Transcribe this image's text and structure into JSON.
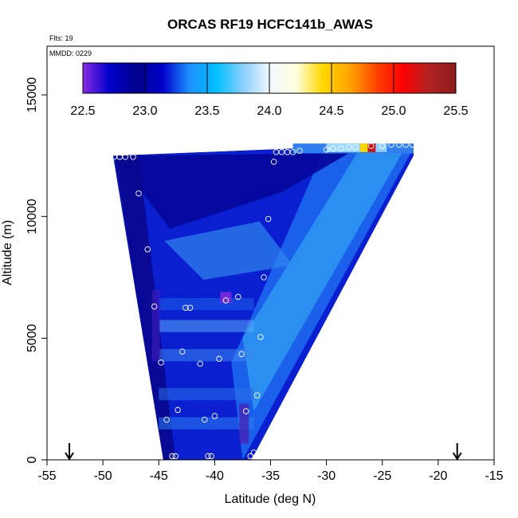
{
  "chart_data": {
    "type": "heatmap",
    "title": "ORCAS RF19 HCFC141b_AWAS",
    "xlabel": "Latitude (deg N)",
    "ylabel": "Altitude (m)",
    "xlim": [
      -55,
      -15
    ],
    "ylim": [
      0,
      17000
    ],
    "x_ticks": [
      "-55",
      "-50",
      "-45",
      "-40",
      "-35",
      "-30",
      "-25",
      "-20",
      "-15"
    ],
    "y_ticks": [
      "0",
      "5000",
      "10000",
      "15000"
    ],
    "annotations": [
      "Flts: 19",
      "MMDD: 0229"
    ],
    "colorbar": {
      "range": [
        22.5,
        25.5
      ],
      "ticks": [
        "22.5",
        "23.0",
        "23.5",
        "24.0",
        "24.5",
        "25.0",
        "25.5"
      ],
      "colors": [
        "#8a2be2",
        "#0000cd",
        "#00008b",
        "#0000cd",
        "#1e90ff",
        "#00bfff",
        "#87cefa",
        "#f0f8ff",
        "#ffffe0",
        "#ffd700",
        "#ffa500",
        "#ff4500",
        "#ff0000",
        "#b22222",
        "#8b1a1a"
      ]
    },
    "arrows_at_latitude": [
      -53,
      -18.3
    ],
    "cross_section": {
      "bottom_left_lat": -44.6,
      "bottom_right_lat": -36.7,
      "bottom_alt": 0,
      "top_left_lat": -49.1,
      "top_right_lat": -22.2,
      "top_alt": 12500,
      "top_right_alt": 13000
    },
    "sample_points": [
      {
        "lat": -49.0,
        "alt": 12450
      },
      {
        "lat": -48.5,
        "alt": 12450
      },
      {
        "lat": -48.0,
        "alt": 12450
      },
      {
        "lat": -47.3,
        "alt": 12450
      },
      {
        "lat": -46.8,
        "alt": 10950
      },
      {
        "lat": -46.0,
        "alt": 8650
      },
      {
        "lat": -45.4,
        "alt": 6300
      },
      {
        "lat": -44.8,
        "alt": 4000
      },
      {
        "lat": -44.3,
        "alt": 1650
      },
      {
        "lat": -43.8,
        "alt": 150
      },
      {
        "lat": -43.5,
        "alt": 150
      },
      {
        "lat": -43.3,
        "alt": 2050
      },
      {
        "lat": -42.9,
        "alt": 4450
      },
      {
        "lat": -42.6,
        "alt": 6250
      },
      {
        "lat": -42.2,
        "alt": 6250
      },
      {
        "lat": -41.3,
        "alt": 3950
      },
      {
        "lat": -40.9,
        "alt": 1650
      },
      {
        "lat": -40.6,
        "alt": 150
      },
      {
        "lat": -40.3,
        "alt": 150
      },
      {
        "lat": -40.0,
        "alt": 1800
      },
      {
        "lat": -39.6,
        "alt": 4150
      },
      {
        "lat": -39.0,
        "alt": 6550
      },
      {
        "lat": -37.9,
        "alt": 6700
      },
      {
        "lat": -37.6,
        "alt": 4350
      },
      {
        "lat": -37.2,
        "alt": 2000
      },
      {
        "lat": -36.8,
        "alt": 150
      },
      {
        "lat": -36.5,
        "alt": 300
      },
      {
        "lat": -36.2,
        "alt": 2650
      },
      {
        "lat": -35.9,
        "alt": 5050
      },
      {
        "lat": -35.6,
        "alt": 7500
      },
      {
        "lat": -35.2,
        "alt": 9900
      },
      {
        "lat": -34.7,
        "alt": 12250
      },
      {
        "lat": -34.5,
        "alt": 12650
      },
      {
        "lat": -34.0,
        "alt": 12650
      },
      {
        "lat": -33.5,
        "alt": 12650
      },
      {
        "lat": -33.0,
        "alt": 12650
      },
      {
        "lat": -32.4,
        "alt": 12700
      },
      {
        "lat": -30.0,
        "alt": 12750
      },
      {
        "lat": -29.4,
        "alt": 12800
      },
      {
        "lat": -28.7,
        "alt": 12800
      },
      {
        "lat": -28.0,
        "alt": 12850
      },
      {
        "lat": -27.4,
        "alt": 12850
      },
      {
        "lat": -26.0,
        "alt": 12900
      },
      {
        "lat": -25.0,
        "alt": 12900
      },
      {
        "lat": -24.2,
        "alt": 12950
      },
      {
        "lat": -23.5,
        "alt": 12950
      },
      {
        "lat": -22.9,
        "alt": 12950
      },
      {
        "lat": -22.3,
        "alt": 12950
      }
    ]
  }
}
